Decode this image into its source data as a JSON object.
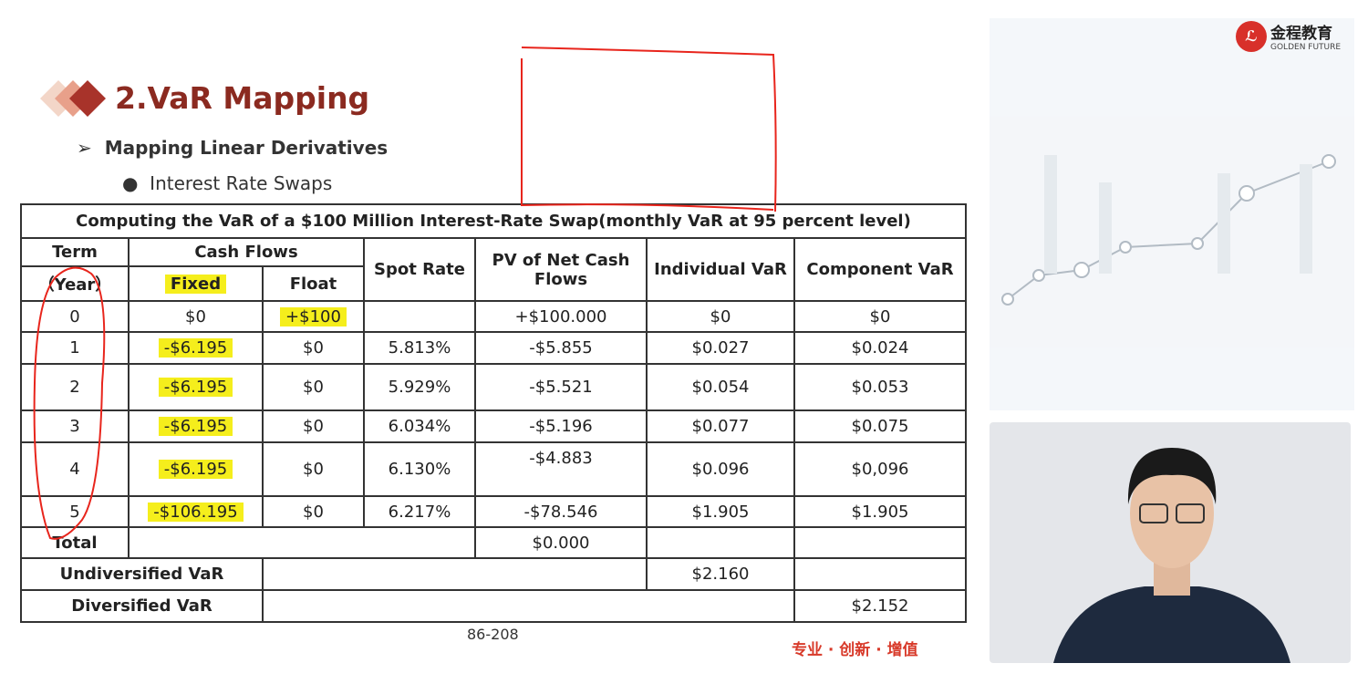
{
  "slide": {
    "title": "2.VaR Mapping",
    "subtitle": "Mapping Linear Derivatives",
    "bullet": "Interest Rate Swaps",
    "page": "86-208",
    "slogan": "专业 · 创新 · 增值"
  },
  "logo": {
    "name": "金程教育",
    "tagline": "GOLDEN FUTURE"
  },
  "table": {
    "caption": "Computing the VaR of a $100 Million Interest-Rate Swap(monthly VaR at 95 percent level)",
    "headers": {
      "term": "Term",
      "year": "（Year）",
      "cash_flows": "Cash Flows",
      "fixed": "Fixed",
      "float": "Float",
      "spot": "Spot Rate",
      "pv": "PV of Net Cash Flows",
      "ivar": "Individual VaR",
      "cvar": "Component VaR"
    },
    "rows": [
      [
        "0",
        "$0",
        "+$100",
        "",
        "+$100.000",
        "$0",
        "$0"
      ],
      [
        "1",
        "-$6.195",
        "$0",
        "5.813%",
        "-$5.855",
        "$0.027",
        "$0.024"
      ],
      [
        "2",
        "-$6.195",
        "$0",
        "5.929%",
        "-$5.521",
        "$0.054",
        "$0.053"
      ],
      [
        "3",
        "-$6.195",
        "$0",
        "6.034%",
        "-$5.196",
        "$0.077",
        "$0.075"
      ],
      [
        "4",
        "-$6.195",
        "$0",
        "6.130%",
        "-$4.883",
        "$0.096",
        "$0,096"
      ],
      [
        "5",
        "-$106.195",
        "$0",
        "6.217%",
        "-$78.546",
        "$1.905",
        "$1.905"
      ]
    ],
    "total_label": "Total",
    "total_pv": "$0.000",
    "undiv_label": "Undiversified VaR",
    "undiv_value": "$2.160",
    "div_label": "Diversified VaR",
    "div_value": "$2.152"
  }
}
